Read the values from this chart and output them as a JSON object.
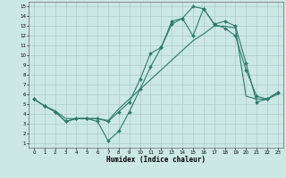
{
  "xlabel": "Humidex (Indice chaleur)",
  "background_color": "#cce8e4",
  "grid_color": "#aacccc",
  "line_color": "#2d7a6e",
  "xlim": [
    -0.5,
    23.5
  ],
  "ylim": [
    0.5,
    15.5
  ],
  "xticks": [
    0,
    1,
    2,
    3,
    4,
    5,
    6,
    7,
    8,
    9,
    10,
    11,
    12,
    13,
    14,
    15,
    16,
    17,
    18,
    19,
    20,
    21,
    22,
    23
  ],
  "yticks": [
    1,
    2,
    3,
    4,
    5,
    6,
    7,
    8,
    9,
    10,
    11,
    12,
    13,
    14,
    15
  ],
  "line1_x": [
    0,
    1,
    2,
    3,
    4,
    5,
    6,
    7,
    8,
    9,
    10,
    11,
    12,
    13,
    14,
    15,
    16,
    17,
    18,
    19,
    20,
    21,
    22,
    23
  ],
  "line1_y": [
    5.5,
    4.8,
    4.2,
    3.2,
    3.5,
    3.5,
    3.2,
    1.2,
    2.2,
    4.2,
    6.5,
    8.8,
    10.8,
    13.2,
    13.8,
    12.0,
    14.8,
    13.2,
    13.5,
    13.0,
    9.2,
    5.2,
    5.5,
    6.2
  ],
  "line2_x": [
    0,
    1,
    2,
    3,
    4,
    5,
    6,
    7,
    8,
    9,
    10,
    11,
    12,
    13,
    14,
    15,
    16,
    17,
    18,
    19,
    20,
    21,
    22,
    23
  ],
  "line2_y": [
    5.5,
    4.8,
    4.2,
    3.2,
    3.5,
    3.5,
    3.5,
    3.2,
    4.2,
    5.2,
    7.5,
    10.2,
    10.8,
    13.5,
    13.8,
    15.0,
    14.8,
    13.2,
    12.8,
    12.0,
    8.5,
    5.8,
    5.5,
    6.2
  ],
  "line3_x": [
    0,
    1,
    2,
    3,
    4,
    5,
    6,
    7,
    8,
    9,
    10,
    11,
    12,
    13,
    14,
    15,
    16,
    17,
    18,
    19,
    20,
    21,
    22,
    23
  ],
  "line3_y": [
    5.5,
    4.8,
    4.3,
    3.5,
    3.5,
    3.5,
    3.5,
    3.3,
    4.5,
    5.5,
    6.5,
    7.5,
    8.5,
    9.5,
    10.5,
    11.5,
    12.2,
    13.0,
    13.0,
    12.8,
    5.8,
    5.5,
    5.5,
    6.0
  ]
}
